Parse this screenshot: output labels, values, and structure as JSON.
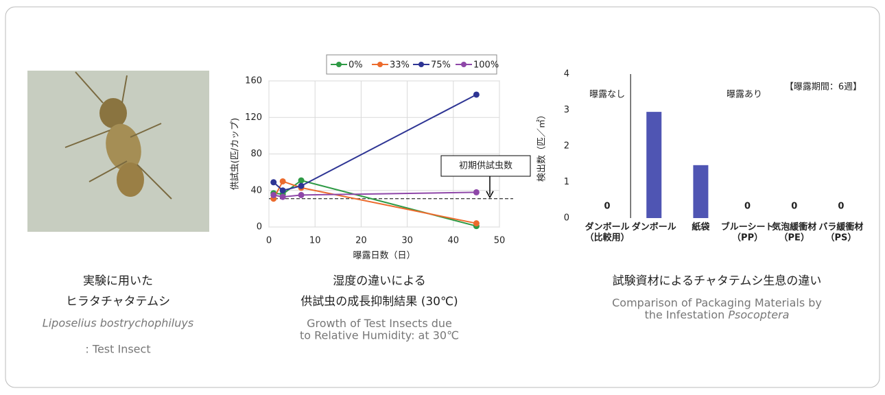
{
  "photo_caption": {
    "lines": [
      "実験に用いた",
      "ヒラタチャタテムシ"
    ],
    "latin": "Liposelius bostrychophiluys",
    "english": ": Test Insect"
  },
  "chart_data": [
    {
      "type": "line",
      "xlabel": "曝露日数（日）",
      "ylabel": "供試虫(匹/カップ)",
      "x": [
        1,
        3,
        7,
        45
      ],
      "series": [
        {
          "name": "0%",
          "color": "#2e9a45",
          "values": [
            37,
            36,
            51,
            1
          ]
        },
        {
          "name": "33%",
          "color": "#ec6b2d",
          "values": [
            31,
            50,
            43,
            4
          ]
        },
        {
          "name": "75%",
          "color": "#2e3594",
          "values": [
            49,
            40,
            45,
            145
          ]
        },
        {
          "name": "100%",
          "color": "#8e47a8",
          "values": [
            35,
            33,
            35,
            38
          ]
        }
      ],
      "xlim": [
        0,
        50
      ],
      "xticks": [
        0,
        10,
        20,
        30,
        40,
        50
      ],
      "ylim": [
        0,
        160
      ],
      "yticks": [
        0,
        40,
        80,
        120,
        160
      ],
      "grid": true,
      "legend": "top",
      "reference_line": {
        "value": 31,
        "label": "初期供試虫数"
      },
      "caption": [
        "湿度の違いによる",
        "供試虫の成長抑制結果 (30℃)"
      ],
      "caption_en": "Growth of Test Insects due to Relative Humidity: at 30℃"
    },
    {
      "type": "bar",
      "ylabel": "検出数（匹／㎡）",
      "categories": [
        "ダンボール\n（比較用）",
        "ダンボール",
        "紙袋",
        "ブルーシート\n（PP）",
        "気泡緩衝材\n（PE）",
        "バラ緩衝材\n（PS）"
      ],
      "values": [
        0,
        2.95,
        1.47,
        0,
        0,
        0
      ],
      "value_labels": [
        "0",
        null,
        null,
        "0",
        "0",
        "0"
      ],
      "color": "#4f55b3",
      "ylim": [
        0,
        4
      ],
      "yticks": [
        0,
        1,
        2,
        3,
        4
      ],
      "annotations": [
        "曝露なし",
        "曝露あり",
        "【曝露期間：6週】"
      ],
      "caption": [
        "試験資材によるチャタテムシ生息の違い"
      ],
      "caption_en": "Comparison of Packaging Materials by the Infestation ",
      "caption_en_italic": "Psocoptera"
    }
  ]
}
